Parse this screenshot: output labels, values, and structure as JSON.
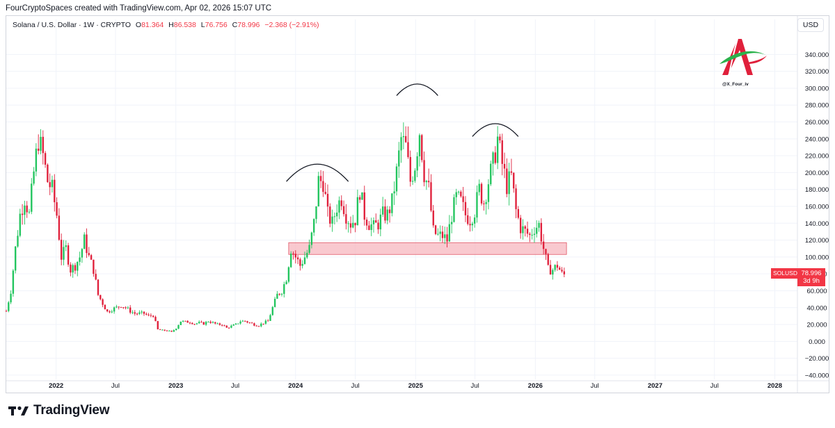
{
  "header": {
    "attribution": "FourCryptoSpaces created with TradingView.com, Apr 02, 2026 15:07 UTC"
  },
  "legend": {
    "symbol": "Solana / U.S. Dollar · 1W · CRYPTO",
    "open_label": "O",
    "open": "81.364",
    "high_label": "H",
    "high": "86.538",
    "low_label": "L",
    "low": "76.756",
    "close_label": "C",
    "close": "78.996",
    "change": "−2.368 (−2.91%)"
  },
  "currency_button": "USD",
  "watermark": {
    "handle": "@X_Four_iv"
  },
  "last_price": {
    "symbol": "SOLUSD",
    "value": "78.996",
    "countdown": "3d 9h"
  },
  "footer": {
    "brand": "TradingView"
  },
  "colors": {
    "up": "#22c55e",
    "down": "#e0203b",
    "zone_fill": "#f7b7bf",
    "zone_stroke": "#e05565",
    "arc": "#131722",
    "axis_text": "#131722",
    "grid": "#f0f3fa"
  },
  "chart_data": {
    "type": "candlestick",
    "title": "Solana / U.S. Dollar · 1W · CRYPTO",
    "ylim": [
      -45,
      365
    ],
    "y_ticks": [
      -40,
      -20,
      0,
      20,
      40,
      60,
      80,
      100,
      120,
      140,
      160,
      180,
      200,
      220,
      240,
      260,
      280,
      300,
      320,
      340
    ],
    "y_tick_labels": [
      "−40.000",
      "−20.000",
      "0.000",
      "20.000",
      "40.000",
      "60.000",
      "80.000",
      "100.000",
      "120.000",
      "140.000",
      "160.000",
      "180.000",
      "200.000",
      "220.000",
      "240.000",
      "260.000",
      "280.000",
      "300.000",
      "320.000",
      "340.000"
    ],
    "x_ticks": [
      "2022-01-01",
      "2022-07-01",
      "2023-01-01",
      "2023-07-01",
      "2024-01-01",
      "2024-07-01",
      "2025-01-01",
      "2025-07-01",
      "2026-01-01",
      "2026-07-01",
      "2027-01-01",
      "2027-07-01",
      "2028-01-01"
    ],
    "x_tick_labels": [
      "2022",
      "Jul",
      "2023",
      "Jul",
      "2024",
      "Jul",
      "2025",
      "Jul",
      "2026",
      "Jul",
      "2027",
      "Jul",
      "2028"
    ],
    "x_range": [
      "2021-08-02",
      "2028-03-10"
    ],
    "series_closes": [
      [
        "2021-08-02",
        36
      ],
      [
        "2021-08-16",
        60
      ],
      [
        "2021-08-30",
        110
      ],
      [
        "2021-09-13",
        150
      ],
      [
        "2021-09-27",
        170
      ],
      [
        "2021-10-11",
        150
      ],
      [
        "2021-10-25",
        200
      ],
      [
        "2021-11-08",
        240
      ],
      [
        "2021-11-22",
        220
      ],
      [
        "2021-12-06",
        190
      ],
      [
        "2021-12-20",
        180
      ],
      [
        "2022-01-03",
        150
      ],
      [
        "2022-01-17",
        100
      ],
      [
        "2022-01-31",
        110
      ],
      [
        "2022-02-14",
        85
      ],
      [
        "2022-02-28",
        90
      ],
      [
        "2022-03-14",
        100
      ],
      [
        "2022-03-28",
        120
      ],
      [
        "2022-04-11",
        100
      ],
      [
        "2022-04-25",
        85
      ],
      [
        "2022-05-09",
        55
      ],
      [
        "2022-05-23",
        45
      ],
      [
        "2022-06-06",
        35
      ],
      [
        "2022-06-20",
        38
      ],
      [
        "2022-07-04",
        40
      ],
      [
        "2022-07-18",
        43
      ],
      [
        "2022-08-01",
        40
      ],
      [
        "2022-08-15",
        36
      ],
      [
        "2022-08-29",
        33
      ],
      [
        "2022-09-12",
        33
      ],
      [
        "2022-09-26",
        33
      ],
      [
        "2022-10-10",
        30
      ],
      [
        "2022-10-24",
        31
      ],
      [
        "2022-11-07",
        14
      ],
      [
        "2022-11-21",
        13
      ],
      [
        "2022-12-05",
        13
      ],
      [
        "2022-12-19",
        11
      ],
      [
        "2023-01-02",
        16
      ],
      [
        "2023-01-16",
        24
      ],
      [
        "2023-01-30",
        23
      ],
      [
        "2023-02-13",
        23
      ],
      [
        "2023-02-27",
        21
      ],
      [
        "2023-03-13",
        22
      ],
      [
        "2023-03-27",
        21
      ],
      [
        "2023-04-10",
        24
      ],
      [
        "2023-04-24",
        22
      ],
      [
        "2023-05-08",
        20
      ],
      [
        "2023-05-22",
        20
      ],
      [
        "2023-06-05",
        16
      ],
      [
        "2023-06-19",
        18
      ],
      [
        "2023-07-03",
        20
      ],
      [
        "2023-07-17",
        24
      ],
      [
        "2023-07-31",
        24
      ],
      [
        "2023-08-14",
        22
      ],
      [
        "2023-08-28",
        20
      ],
      [
        "2023-09-11",
        19
      ],
      [
        "2023-09-25",
        22
      ],
      [
        "2023-10-09",
        24
      ],
      [
        "2023-10-23",
        40
      ],
      [
        "2023-11-06",
        55
      ],
      [
        "2023-11-20",
        60
      ],
      [
        "2023-12-04",
        75
      ],
      [
        "2023-12-18",
        110
      ],
      [
        "2024-01-01",
        100
      ],
      [
        "2024-01-15",
        90
      ],
      [
        "2024-01-29",
        100
      ],
      [
        "2024-02-12",
        110
      ],
      [
        "2024-02-26",
        140
      ],
      [
        "2024-03-11",
        190
      ],
      [
        "2024-03-25",
        190
      ],
      [
        "2024-04-08",
        150
      ],
      [
        "2024-04-22",
        140
      ],
      [
        "2024-05-06",
        160
      ],
      [
        "2024-05-20",
        170
      ],
      [
        "2024-06-03",
        150
      ],
      [
        "2024-06-17",
        140
      ],
      [
        "2024-07-01",
        145
      ],
      [
        "2024-07-15",
        180
      ],
      [
        "2024-07-29",
        150
      ],
      [
        "2024-08-12",
        140
      ],
      [
        "2024-08-26",
        135
      ],
      [
        "2024-09-09",
        140
      ],
      [
        "2024-09-23",
        150
      ],
      [
        "2024-10-07",
        150
      ],
      [
        "2024-10-21",
        165
      ],
      [
        "2024-11-04",
        200
      ],
      [
        "2024-11-18",
        240
      ],
      [
        "2024-12-02",
        230
      ],
      [
        "2024-12-16",
        190
      ],
      [
        "2024-12-30",
        210
      ],
      [
        "2025-01-13",
        250
      ],
      [
        "2025-01-27",
        200
      ],
      [
        "2025-02-10",
        180
      ],
      [
        "2025-02-24",
        130
      ],
      [
        "2025-03-10",
        125
      ],
      [
        "2025-03-24",
        125
      ],
      [
        "2025-04-07",
        120
      ],
      [
        "2025-04-21",
        150
      ],
      [
        "2025-05-05",
        170
      ],
      [
        "2025-05-19",
        165
      ],
      [
        "2025-06-02",
        150
      ],
      [
        "2025-06-16",
        145
      ],
      [
        "2025-06-30",
        155
      ],
      [
        "2025-07-14",
        180
      ],
      [
        "2025-07-28",
        165
      ],
      [
        "2025-08-11",
        190
      ],
      [
        "2025-08-25",
        210
      ],
      [
        "2025-09-08",
        240
      ],
      [
        "2025-09-22",
        210
      ],
      [
        "2025-10-06",
        185
      ],
      [
        "2025-10-20",
        195
      ],
      [
        "2025-11-03",
        155
      ],
      [
        "2025-11-17",
        135
      ],
      [
        "2025-12-01",
        130
      ],
      [
        "2025-12-15",
        125
      ],
      [
        "2025-12-29",
        135
      ],
      [
        "2026-01-12",
        138
      ],
      [
        "2026-01-26",
        110
      ],
      [
        "2026-02-09",
        85
      ],
      [
        "2026-02-23",
        85
      ],
      [
        "2026-03-09",
        90
      ],
      [
        "2026-03-23",
        80
      ],
      [
        "2026-03-30",
        79
      ]
    ],
    "support_zone": {
      "low": 103,
      "high": 117,
      "start": "2023-12-11",
      "end": "2026-04-06"
    },
    "head_and_shoulders_arcs": [
      {
        "start": "2023-12-04",
        "end": "2024-06-10",
        "peak": 210
      },
      {
        "start": "2024-11-04",
        "end": "2025-03-10",
        "peak": 305
      },
      {
        "start": "2025-06-23",
        "end": "2025-11-10",
        "peak": 258
      }
    ],
    "last_close": 78.996
  }
}
